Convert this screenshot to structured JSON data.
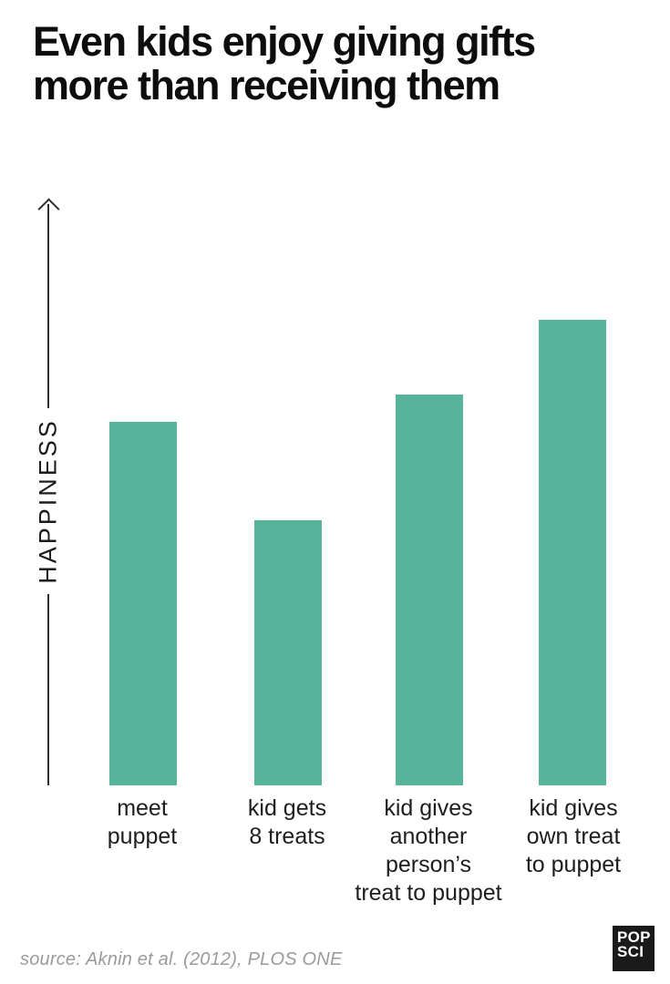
{
  "header": {
    "title_line1": "Even kids enjoy giving gifts",
    "title_line2": "more than receiving them"
  },
  "chart_data": {
    "type": "bar",
    "title": "Even kids enjoy giving gifts more than receiving them",
    "ylabel": "HAPPINESS",
    "value_axis": "unlabeled upward arrow, no tick marks or numbers",
    "categories": [
      "meet puppet",
      "kid gets 8 treats",
      "kid gives another person’s treat to puppet",
      "kid gives own treat to puppet"
    ],
    "categories_lines": [
      [
        "meet",
        "puppet"
      ],
      [
        "kid gets",
        "8 treats"
      ],
      [
        "kid gives",
        "another",
        "person’s",
        "treat to puppet"
      ],
      [
        "kid gives",
        "own treat",
        "to puppet"
      ]
    ],
    "relative_values": [
      0.78,
      0.57,
      0.84,
      1.0
    ],
    "bar_color": "#57b39a",
    "axis_color": "#2e2e2e",
    "title_color": "#0d0d0d",
    "label_color": "#1e1e1e",
    "source_color": "#9b9b9b",
    "legend": "none",
    "grid": "off"
  },
  "footer": {
    "source": "source: Aknin et al. (2012), PLOS ONE",
    "logo_line1": "POP",
    "logo_line2": "SCI",
    "logo_bg": "#1a1a1a"
  }
}
